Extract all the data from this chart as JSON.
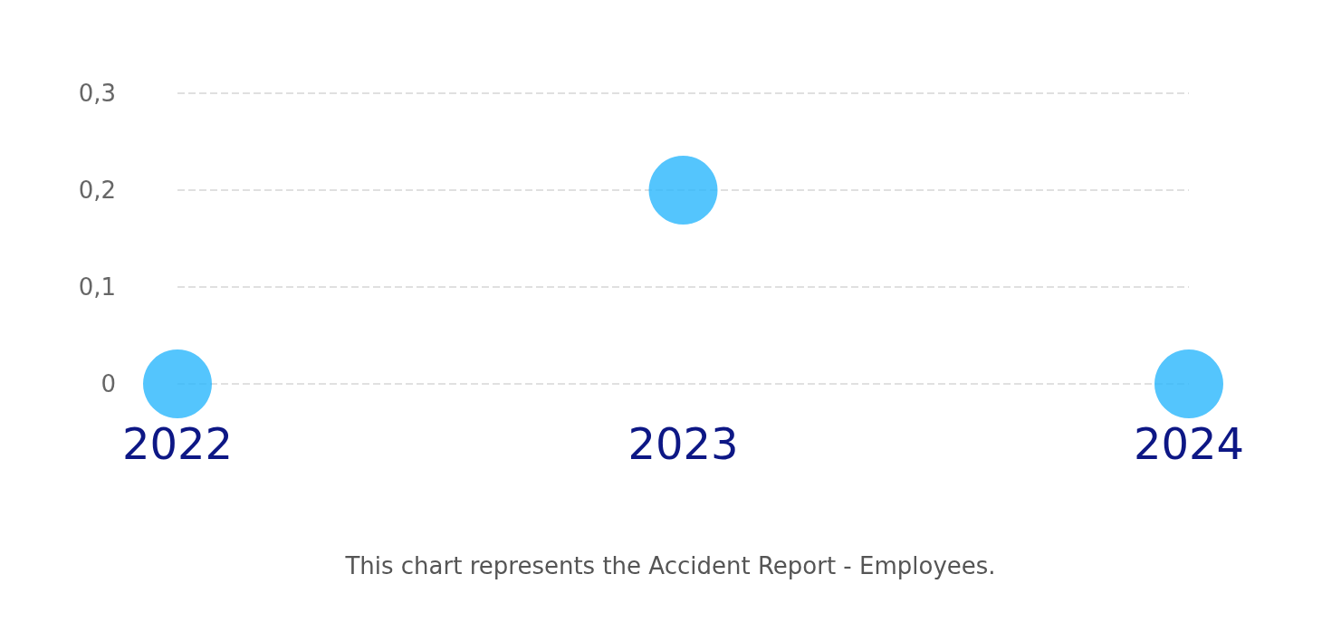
{
  "chart_data": {
    "type": "scatter",
    "categories": [
      "2022",
      "2023",
      "2024"
    ],
    "values": [
      0,
      0.2,
      0
    ],
    "color": "#29b6fd",
    "marker": "circle",
    "ylim": [
      0,
      0.3
    ],
    "yticks": [
      {
        "value": 0,
        "label": "0"
      },
      {
        "value": 0.1,
        "label": "0,1"
      },
      {
        "value": 0.2,
        "label": "0,2"
      },
      {
        "value": 0.3,
        "label": "0,3"
      }
    ],
    "grid": "y",
    "annotations": [
      "This chart represents the Accident Report - Employees."
    ]
  }
}
